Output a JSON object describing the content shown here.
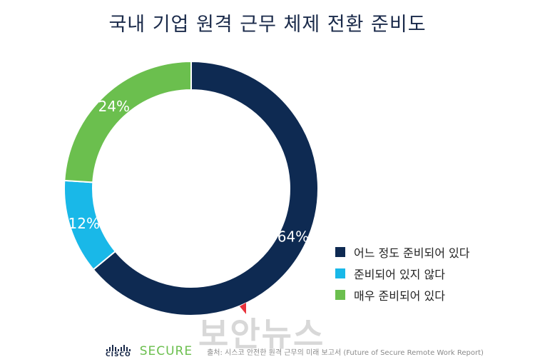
{
  "chart_data": {
    "type": "pie",
    "title": "국내 기업 원격 근무 체제 전환 준비도",
    "slices": [
      {
        "label": "어느 정도 준비되어 있다",
        "value": 64,
        "value_label": "64%",
        "color": "#0e2a52"
      },
      {
        "label": "준비되어 있지 않다",
        "value": 12,
        "value_label": "12%",
        "color": "#19b8e8"
      },
      {
        "label": "매우 준비되어 있다",
        "value": 24,
        "value_label": "24%",
        "color": "#6bbf4e"
      }
    ],
    "legend_position": "bottom-right"
  },
  "footer": {
    "brand_cisco": "CISCO",
    "brand_secure": "SECURE",
    "source": "출처: 시스코 안전한 원격 근무의 미래 보고서 (Future of Secure Remote Work Report)"
  },
  "watermark": "보안뉴스"
}
